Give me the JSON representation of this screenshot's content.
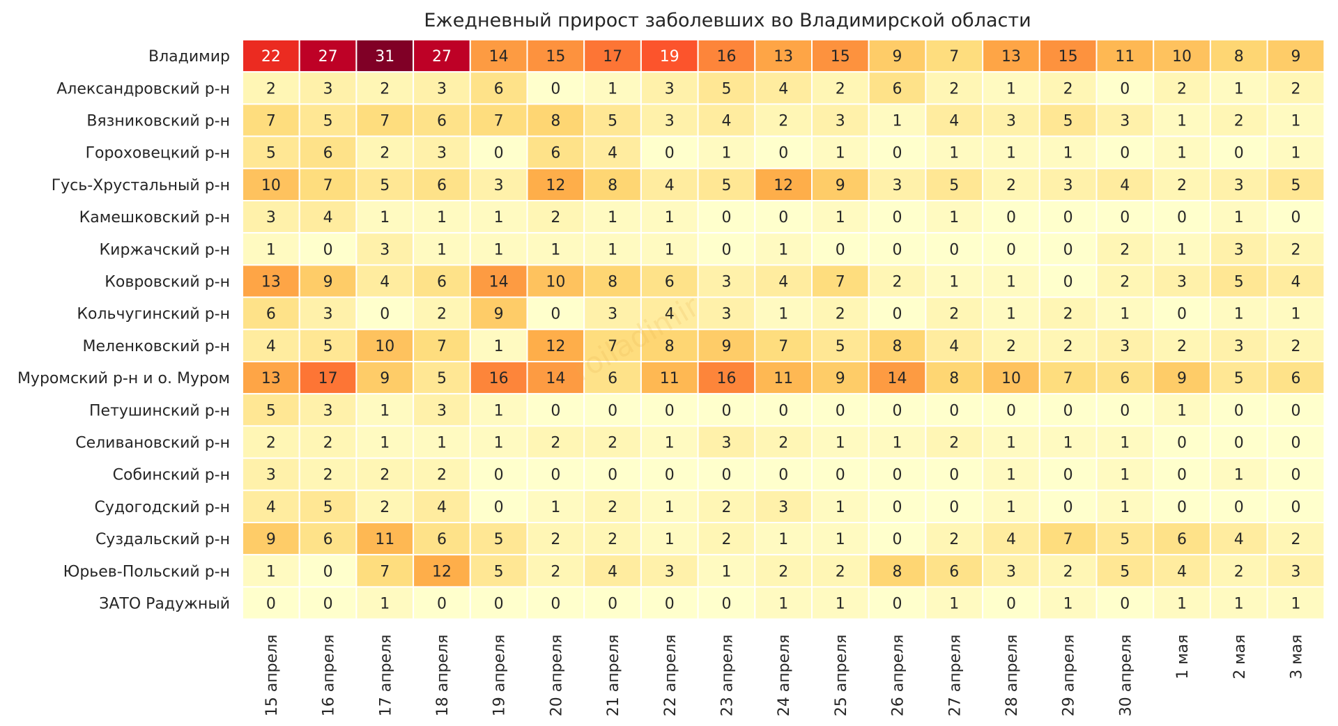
{
  "chart_data": {
    "type": "heatmap",
    "title": "Ежедневный прирост заболевших во Владимирской области",
    "watermark": "roiladimir",
    "columns": [
      "15 апреля",
      "16 апреля",
      "17 апреля",
      "18 апреля",
      "19 апреля",
      "20 апреля",
      "21 апреля",
      "22 апреля",
      "23 апреля",
      "24 апреля",
      "25 апреля",
      "26 апреля",
      "27 апреля",
      "28 апреля",
      "29 апреля",
      "30 апреля",
      "1 мая",
      "2 мая",
      "3 мая"
    ],
    "rows": [
      "Владимир",
      "Александровский р-н",
      "Вязниковский р-н",
      "Гороховецкий р-н",
      "Гусь-Хрустальный р-н",
      "Камешковский р-н",
      "Киржачский р-н",
      "Ковровский р-н",
      "Кольчугинский р-н",
      "Меленковский р-н",
      "Муромский р-н и о. Муром",
      "Петушинский р-н",
      "Селивановский р-н",
      "Собинский р-н",
      "Судогодский р-н",
      "Суздальский р-н",
      "Юрьев-Польский р-н",
      "ЗАТО Радужный"
    ],
    "values": [
      [
        22,
        27,
        31,
        27,
        14,
        15,
        17,
        19,
        16,
        13,
        15,
        9,
        7,
        13,
        15,
        11,
        10,
        8,
        9
      ],
      [
        2,
        3,
        2,
        3,
        6,
        0,
        1,
        3,
        5,
        4,
        2,
        6,
        2,
        1,
        2,
        0,
        2,
        1,
        2
      ],
      [
        7,
        5,
        7,
        6,
        7,
        8,
        5,
        3,
        4,
        2,
        3,
        1,
        4,
        3,
        5,
        3,
        1,
        2,
        1
      ],
      [
        5,
        6,
        2,
        3,
        0,
        6,
        4,
        0,
        1,
        0,
        1,
        0,
        1,
        1,
        1,
        0,
        1,
        0,
        1
      ],
      [
        10,
        7,
        5,
        6,
        3,
        12,
        8,
        4,
        5,
        12,
        9,
        3,
        5,
        2,
        3,
        4,
        2,
        3,
        5
      ],
      [
        3,
        4,
        1,
        1,
        1,
        2,
        1,
        1,
        0,
        0,
        1,
        0,
        1,
        0,
        0,
        0,
        0,
        1,
        0
      ],
      [
        1,
        0,
        3,
        1,
        1,
        1,
        1,
        1,
        0,
        1,
        0,
        0,
        0,
        0,
        0,
        2,
        1,
        3,
        2
      ],
      [
        13,
        9,
        4,
        6,
        14,
        10,
        8,
        6,
        3,
        4,
        7,
        2,
        1,
        1,
        0,
        2,
        3,
        5,
        4
      ],
      [
        6,
        3,
        0,
        2,
        9,
        0,
        3,
        4,
        3,
        1,
        2,
        0,
        2,
        1,
        2,
        1,
        0,
        1,
        1
      ],
      [
        4,
        5,
        10,
        7,
        1,
        12,
        7,
        8,
        9,
        7,
        5,
        8,
        4,
        2,
        2,
        3,
        2,
        3,
        2
      ],
      [
        13,
        17,
        9,
        5,
        16,
        14,
        6,
        11,
        16,
        11,
        9,
        14,
        8,
        10,
        7,
        6,
        9,
        5,
        6
      ],
      [
        5,
        3,
        1,
        3,
        1,
        0,
        0,
        0,
        0,
        0,
        0,
        0,
        0,
        0,
        0,
        0,
        1,
        0,
        0
      ],
      [
        2,
        2,
        1,
        1,
        1,
        2,
        2,
        1,
        3,
        2,
        1,
        1,
        2,
        1,
        1,
        1,
        0,
        0,
        0
      ],
      [
        3,
        2,
        2,
        2,
        0,
        0,
        0,
        0,
        0,
        0,
        0,
        0,
        0,
        1,
        0,
        1,
        0,
        1,
        0
      ],
      [
        4,
        5,
        2,
        4,
        0,
        1,
        2,
        1,
        2,
        3,
        1,
        0,
        0,
        1,
        0,
        1,
        0,
        0,
        0
      ],
      [
        9,
        6,
        11,
        6,
        5,
        2,
        2,
        1,
        2,
        1,
        1,
        0,
        2,
        4,
        7,
        5,
        6,
        4,
        2
      ],
      [
        1,
        0,
        7,
        12,
        5,
        2,
        4,
        3,
        1,
        2,
        2,
        8,
        6,
        3,
        2,
        5,
        4,
        2,
        3
      ],
      [
        0,
        0,
        1,
        0,
        0,
        0,
        0,
        0,
        0,
        1,
        1,
        0,
        1,
        0,
        1,
        0,
        1,
        1,
        1
      ]
    ],
    "vmin": 0,
    "vmax": 31,
    "colormap": "YlOrRd",
    "colors": {
      "low": "#ffffcc",
      "mid": "#fd8d3c",
      "high": "#800026",
      "cell_border": "#ffffff",
      "text_dark": "#262626",
      "text_light": "#ffffff"
    },
    "grid": false,
    "legend": "none"
  }
}
